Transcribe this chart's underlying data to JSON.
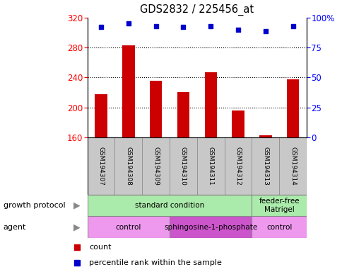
{
  "title": "GDS2832 / 225456_at",
  "samples": [
    "GSM194307",
    "GSM194308",
    "GSM194309",
    "GSM194310",
    "GSM194311",
    "GSM194312",
    "GSM194313",
    "GSM194314"
  ],
  "counts": [
    218,
    283,
    236,
    221,
    247,
    196,
    163,
    238
  ],
  "percentile_ranks": [
    92,
    95,
    93,
    92,
    93,
    90,
    89,
    93
  ],
  "ylim_left": [
    160,
    320
  ],
  "ylim_right": [
    0,
    100
  ],
  "yticks_left": [
    160,
    200,
    240,
    280,
    320
  ],
  "yticks_right": [
    0,
    25,
    50,
    75,
    100
  ],
  "bar_color": "#cc0000",
  "dot_color": "#0000cc",
  "growth_protocol_groups": [
    {
      "label": "standard condition",
      "start": 0,
      "end": 6,
      "color": "#aaeaaa"
    },
    {
      "label": "feeder-free\nMatrigel",
      "start": 6,
      "end": 8,
      "color": "#aaeaaa"
    }
  ],
  "agent_groups": [
    {
      "label": "control",
      "start": 0,
      "end": 3,
      "color": "#ee99ee"
    },
    {
      "label": "sphingosine-1-phosphate",
      "start": 3,
      "end": 6,
      "color": "#cc55cc"
    },
    {
      "label": "control",
      "start": 6,
      "end": 8,
      "color": "#ee99ee"
    }
  ],
  "growth_protocol_label": "growth protocol",
  "agent_label": "agent",
  "legend_count_label": "count",
  "legend_percentile_label": "percentile rank within the sample",
  "label_area_color": "#c8c8c8"
}
